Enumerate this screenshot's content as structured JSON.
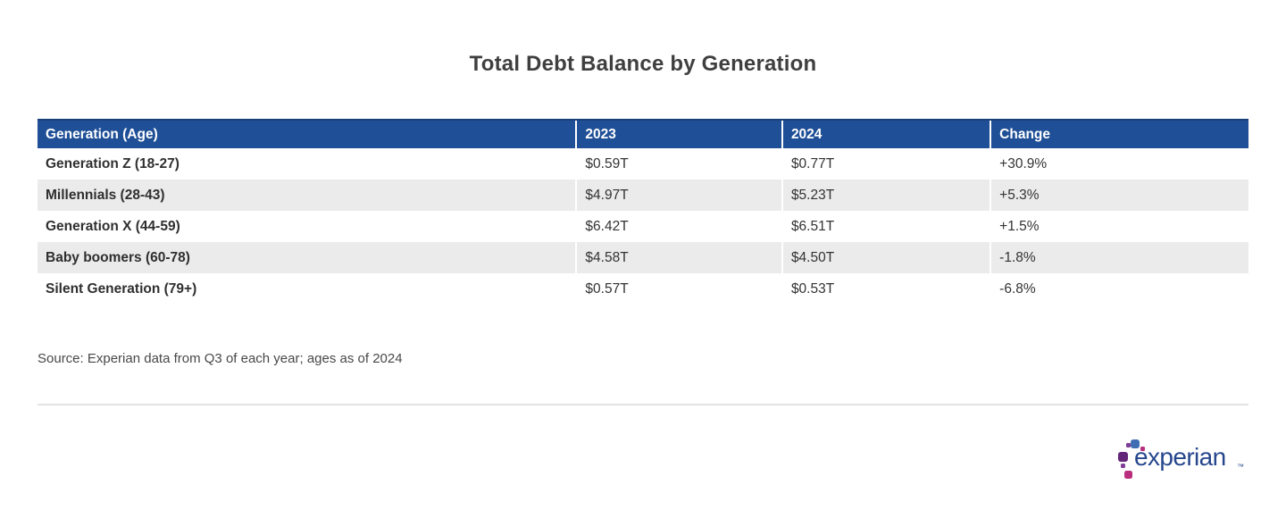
{
  "chart_data": {
    "type": "table",
    "title": "Total Debt Balance by Generation",
    "columns": [
      "Generation (Age)",
      "2023",
      "2024",
      "Change"
    ],
    "rows": [
      [
        "Generation Z (18-27)",
        "$0.59T",
        "$0.77T",
        "+30.9%"
      ],
      [
        "Millennials (28-43)",
        "$4.97T",
        "$5.23T",
        "+5.3%"
      ],
      [
        "Generation X (44-59)",
        "$6.42T",
        "$6.51T",
        "+1.5%"
      ],
      [
        "Baby boomers (60-78)",
        "$4.58T",
        "$4.50T",
        "-1.8%"
      ],
      [
        "Silent Generation (79+)",
        "$0.57T",
        "$0.53T",
        "-6.8%"
      ]
    ],
    "source_note": "Source: Experian data from Q3 of each year; ages as of 2024",
    "layout": {
      "header_style": "solid blue bar with white bold text",
      "row_striping": "alternate rows light gray",
      "legend": "none",
      "grid": "vertical white separators between columns"
    }
  },
  "logo": {
    "wordmark": "experian",
    "trademark": "™"
  },
  "colors": {
    "header_blue": "#1f4f96",
    "header_top_border": "#1a3f78",
    "row_alt_gray": "#ebebeb",
    "body_text": "#333333",
    "title_text": "#3f3f3f",
    "divider": "#e3e3e3",
    "logo_dark_blue": "#26478d",
    "logo_light_blue": "#406eb3",
    "logo_purple": "#632678",
    "logo_violet": "#7d3f98",
    "logo_magenta": "#ba2f7d"
  }
}
